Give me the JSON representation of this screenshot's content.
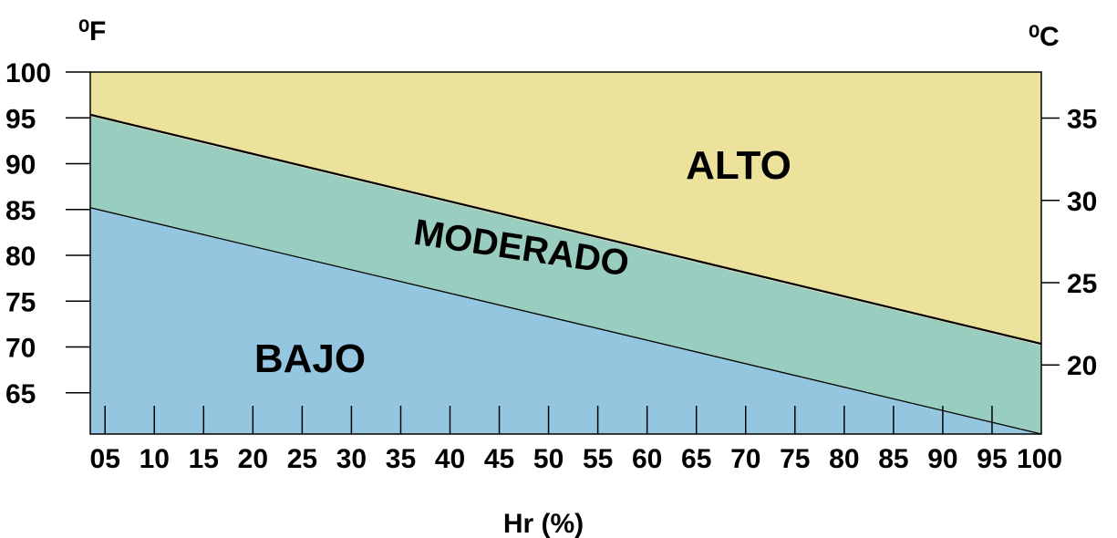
{
  "chart_data": {
    "type": "area",
    "left_axis_unit": "⁰F",
    "right_axis_unit": "⁰C",
    "xlabel": "Hr (%)",
    "x_ticks": [
      "05",
      "10",
      "15",
      "20",
      "25",
      "30",
      "35",
      "40",
      "45",
      "50",
      "55",
      "60",
      "65",
      "70",
      "75",
      "80",
      "85",
      "90",
      "95",
      "100"
    ],
    "x_range": [
      3.5,
      100
    ],
    "y_left_ticks": [
      100,
      95,
      90,
      85,
      80,
      75,
      70,
      65
    ],
    "y_left_range": [
      60.5,
      100
    ],
    "y_right_ticks": [
      35,
      30,
      25,
      20
    ],
    "y_right_range": [
      15.8,
      37.8
    ],
    "regions": [
      {
        "name": "BAJO",
        "color": "#94c7df",
        "upper_boundary": [
          [
            3.5,
            85.2
          ],
          [
            100,
            60.5
          ]
        ]
      },
      {
        "name": "MODERADO",
        "color": "#98cdbf",
        "upper_boundary": [
          [
            3.5,
            95.3
          ],
          [
            100,
            70.3
          ]
        ]
      },
      {
        "name": "ALTO",
        "color": "#ece29b",
        "upper_boundary": [
          [
            3.5,
            100
          ],
          [
            100,
            100
          ]
        ]
      }
    ]
  }
}
